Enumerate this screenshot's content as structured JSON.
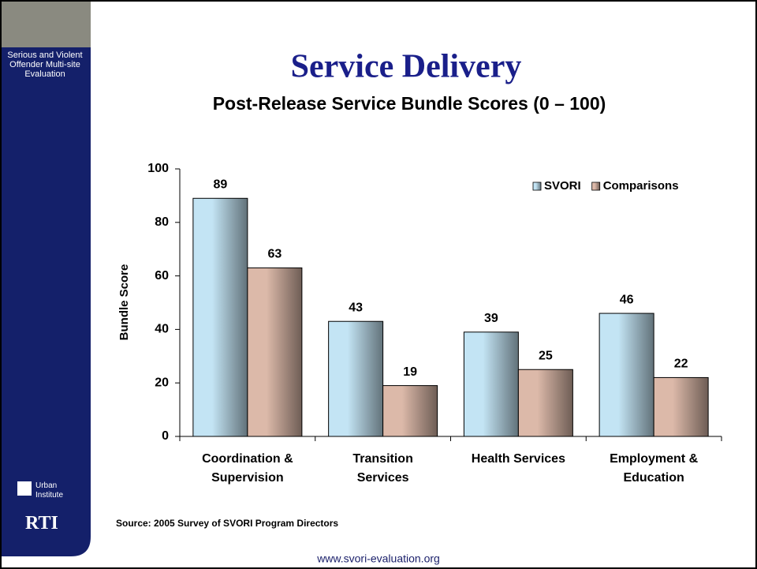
{
  "sidebar": {
    "project": "Serious and Violent Offender Multi-site Evaluation",
    "logo1": "Urban Institute",
    "logo2": "RTI"
  },
  "footer": "www.svori-evaluation.org",
  "chart_data": {
    "type": "bar",
    "title": "Service Delivery",
    "subtitle": "Post-Release Service Bundle Scores (0 – 100)",
    "y_label": "Bundle Score",
    "source": "Source: 2005 Survey of SVORI Program Directors",
    "categories": [
      "Coordination & Supervision",
      "Transition Services",
      "Health Services",
      "Employment & Education"
    ],
    "series": [
      {
        "name": "SVORI",
        "color": "#c3e4f4",
        "values": [
          89,
          43,
          39,
          46
        ]
      },
      {
        "name": "Comparisons",
        "color": "#dcb9a9",
        "values": [
          63,
          19,
          25,
          22
        ]
      }
    ],
    "ylim": [
      0,
      100
    ],
    "yticks": [
      0,
      20,
      40,
      60,
      80,
      100
    ],
    "legend": "top-right"
  }
}
